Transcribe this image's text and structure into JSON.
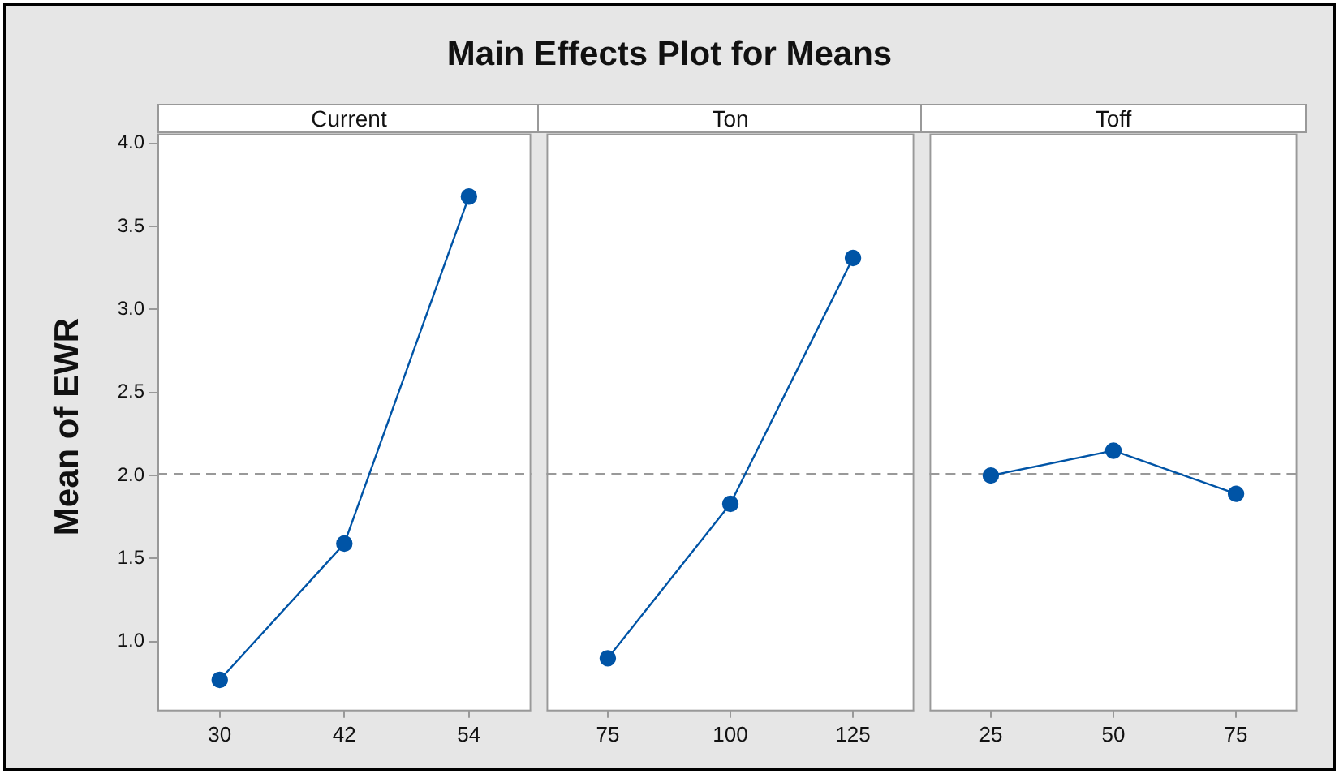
{
  "chart_data": [
    {
      "type": "line",
      "title": "Main Effects Plot for Means",
      "subtitle": "Current",
      "ylabel": "Mean of EWR",
      "categories": [
        "30",
        "42",
        "54"
      ],
      "series": [
        {
          "color": "#0054a6",
          "values": [
            0.77,
            1.59,
            3.68
          ]
        }
      ],
      "ylim": [
        0.59,
        4.06
      ],
      "yticks": [
        {
          "value": 1,
          "label": "1.0"
        },
        1.5,
        {
          "value": 2,
          "label": "2.0"
        },
        2.5,
        {
          "value": 3,
          "label": "3.0"
        },
        3.5,
        {
          "value": 4,
          "label": "4.0"
        }
      ],
      "ref_lines": [
        {
          "axis": "y",
          "value": 2.01,
          "color": "#999999",
          "line_style": "dashed"
        }
      ],
      "marker": "circle",
      "grid": false,
      "legend": false
    },
    {
      "type": "line",
      "subtitle": "Ton",
      "categories": [
        "75",
        "100",
        "125"
      ],
      "series": [
        {
          "color": "#0054a6",
          "values": [
            0.9,
            1.83,
            3.31
          ]
        }
      ],
      "ylim": [
        0.59,
        4.06
      ],
      "tick_labels": "x",
      "ref_lines": [
        {
          "axis": "y",
          "value": 2.01,
          "color": "#999999",
          "line_style": "dashed"
        }
      ],
      "marker": "circle",
      "grid": false,
      "legend": false
    },
    {
      "type": "line",
      "subtitle": "Toff",
      "categories": [
        "25",
        "50",
        "75"
      ],
      "series": [
        {
          "color": "#0054a6",
          "values": [
            2.0,
            2.15,
            1.89
          ]
        }
      ],
      "ylim": [
        0.59,
        4.06
      ],
      "tick_labels": "x",
      "ref_lines": [
        {
          "axis": "y",
          "value": 2.01,
          "color": "#999999",
          "line_style": "dashed"
        }
      ],
      "marker": "circle",
      "grid": false,
      "legend": false
    }
  ]
}
